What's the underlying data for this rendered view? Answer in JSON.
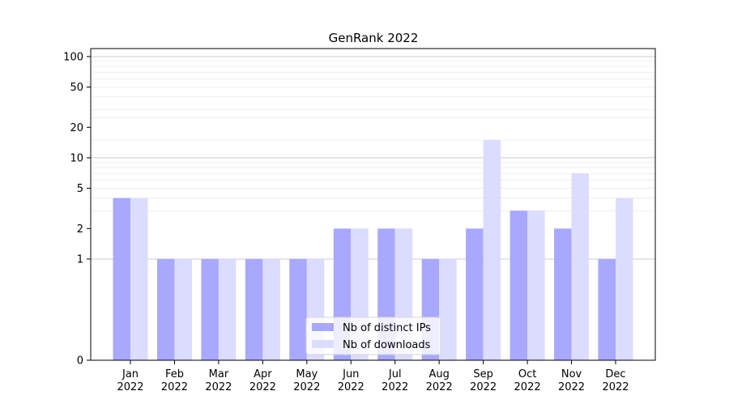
{
  "chart_data": {
    "type": "bar",
    "title": "GenRank 2022",
    "xlabel": "",
    "ylabel": "",
    "y_scale": "symlog",
    "ylim": [
      0,
      120
    ],
    "yticks": [
      0,
      1,
      2,
      5,
      10,
      20,
      50,
      100
    ],
    "categories": [
      [
        "Jan",
        "2022"
      ],
      [
        "Feb",
        "2022"
      ],
      [
        "Mar",
        "2022"
      ],
      [
        "Apr",
        "2022"
      ],
      [
        "May",
        "2022"
      ],
      [
        "Jun",
        "2022"
      ],
      [
        "Jul",
        "2022"
      ],
      [
        "Aug",
        "2022"
      ],
      [
        "Sep",
        "2022"
      ],
      [
        "Oct",
        "2022"
      ],
      [
        "Nov",
        "2022"
      ],
      [
        "Dec",
        "2022"
      ]
    ],
    "series": [
      {
        "name": "Nb of distinct IPs",
        "color": "#a8a8ff",
        "values": [
          4,
          1,
          1,
          1,
          1,
          2,
          2,
          1,
          2,
          3,
          2,
          1
        ]
      },
      {
        "name": "Nb of downloads",
        "color": "#dcdcff",
        "values": [
          4,
          1,
          1,
          1,
          1,
          2,
          2,
          1,
          15,
          3,
          7,
          4
        ]
      }
    ],
    "grid": true,
    "legend_position": "bottom-center"
  }
}
